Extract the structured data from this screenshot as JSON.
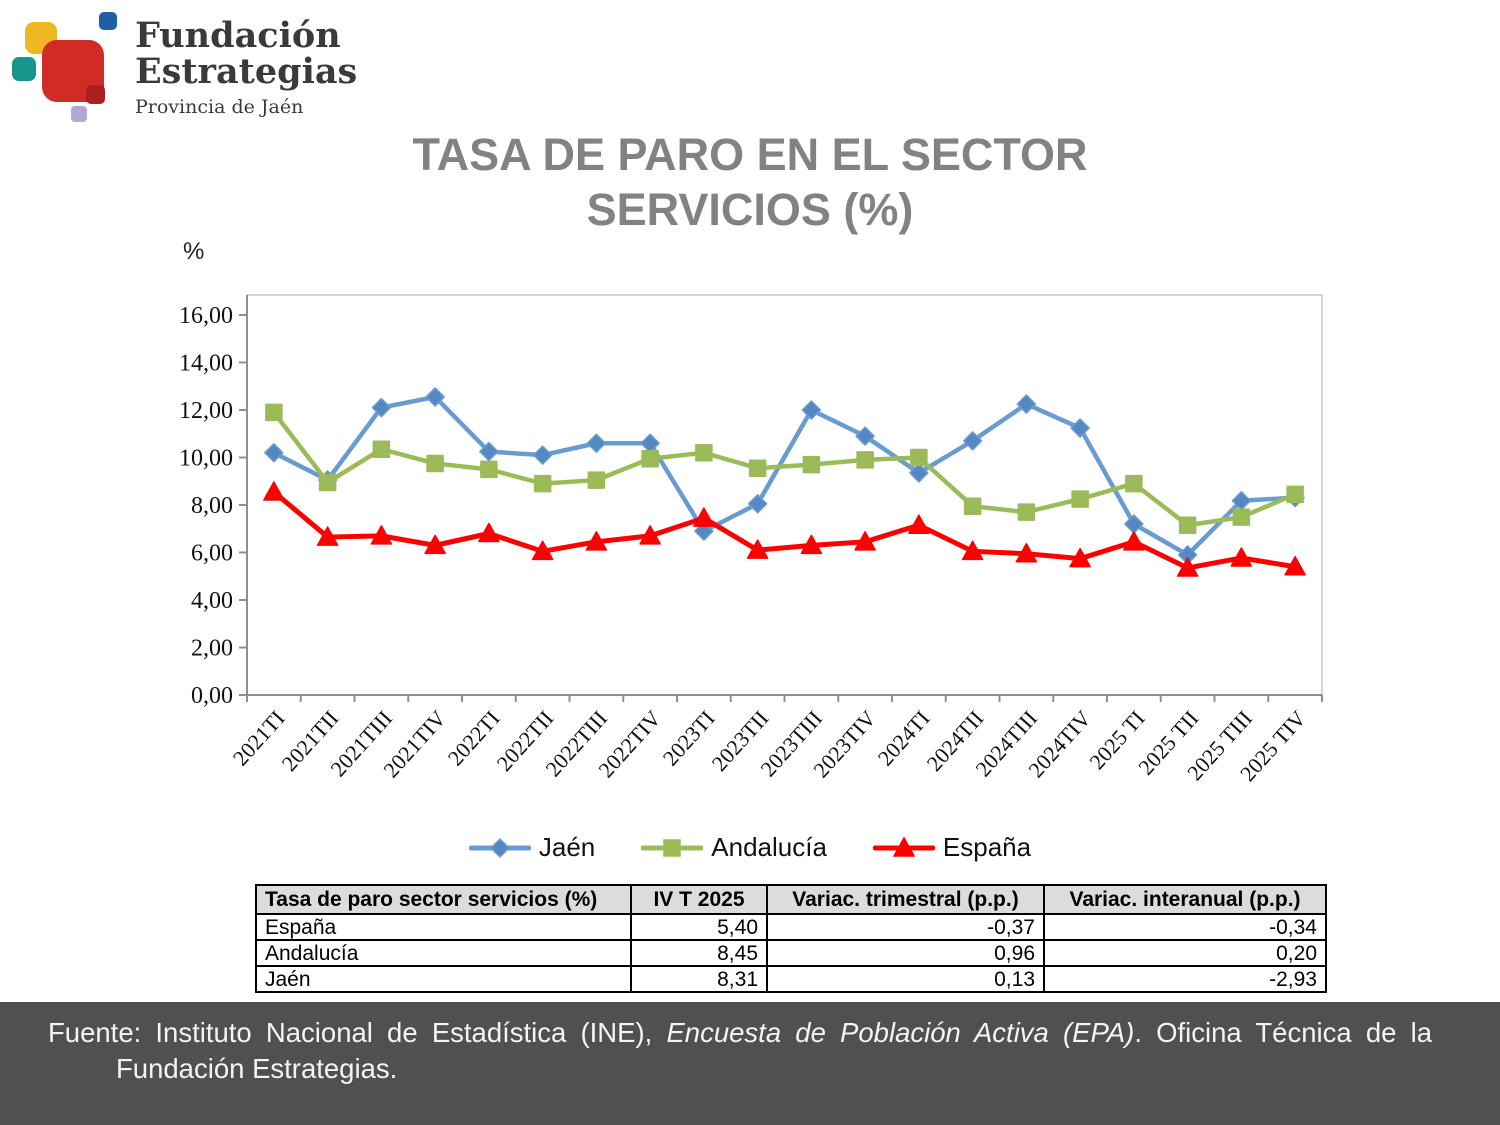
{
  "logo": {
    "name_line1": "Fundación",
    "name_line2": "Estrategias",
    "subtitle": "Provincia de Jaén",
    "colors": {
      "yellow": "#EFB722",
      "blue": "#1E5FA5",
      "teal": "#18968B",
      "red": "#D02B24",
      "dark_red": "#AE1F22",
      "lavender": "#B5A7D3"
    }
  },
  "chart_data": {
    "type": "line",
    "title": "TASA DE PARO EN EL SECTOR SERVICIOS (%)",
    "xlabel": "",
    "ylabel": "%",
    "ylim": [
      0,
      16
    ],
    "ytick_step": 2,
    "ytick_labels": [
      "0,00",
      "2,00",
      "4,00",
      "6,00",
      "8,00",
      "10,00",
      "12,00",
      "14,00",
      "16,00"
    ],
    "grid": false,
    "legend_position": "bottom",
    "categories": [
      "2021TI",
      "2021TII",
      "2021TIII",
      "2021TIV",
      "2022TI",
      "2022TII",
      "2022TIII",
      "2022TIV",
      "2023TI",
      "2023TII",
      "2023TIII",
      "2023TIV",
      "2024TI",
      "2024TII",
      "2024TIII",
      "2024TIV",
      "2025 TI",
      "2025 TII",
      "2025 TIII",
      "2025 TIV"
    ],
    "series": [
      {
        "name": "Jaén",
        "marker": "diamond",
        "color": "#689BD2",
        "marker_color": "#5588C2",
        "values": [
          10.2,
          9.05,
          12.1,
          12.55,
          10.25,
          10.1,
          10.6,
          10.6,
          6.9,
          8.05,
          12.0,
          10.9,
          9.35,
          10.7,
          12.25,
          11.24,
          7.2,
          5.9,
          8.18,
          8.31
        ]
      },
      {
        "name": "Andalucía",
        "marker": "square",
        "color": "#9BBB59",
        "marker_color": "#9BBB59",
        "values": [
          11.9,
          8.95,
          10.35,
          9.75,
          9.5,
          8.9,
          9.05,
          9.95,
          10.2,
          9.55,
          9.7,
          9.9,
          10.0,
          7.95,
          7.7,
          8.25,
          8.9,
          7.15,
          7.49,
          8.45
        ]
      },
      {
        "name": "España",
        "marker": "triangle",
        "color": "#FE0000",
        "marker_color": "#FE0000",
        "values": [
          8.55,
          6.65,
          6.7,
          6.3,
          6.8,
          6.05,
          6.45,
          6.7,
          7.45,
          6.1,
          6.3,
          6.45,
          7.15,
          6.05,
          5.95,
          5.74,
          6.45,
          5.35,
          5.77,
          5.4
        ]
      }
    ]
  },
  "table": {
    "headers": [
      "Tasa de paro sector servicios (%)",
      "IV T 2025",
      "Variac. trimestral (p.p.)",
      "Variac. interanual (p.p.)"
    ],
    "rows": [
      {
        "label": "España",
        "values": [
          "5,40",
          "-0,37",
          "-0,34"
        ]
      },
      {
        "label": "Andalucía",
        "values": [
          "8,45",
          "0,96",
          "0,20"
        ]
      },
      {
        "label": "Jaén",
        "values": [
          "8,31",
          "0,13",
          "-2,93"
        ]
      }
    ]
  },
  "footer": {
    "prefix": "Fuente: Instituto Nacional de Estadística (INE), ",
    "italic": "Encuesta de Población Activa (EPA)",
    "suffix": ". Oficina Técnica de la",
    "line2": "Fundación Estrategias."
  }
}
